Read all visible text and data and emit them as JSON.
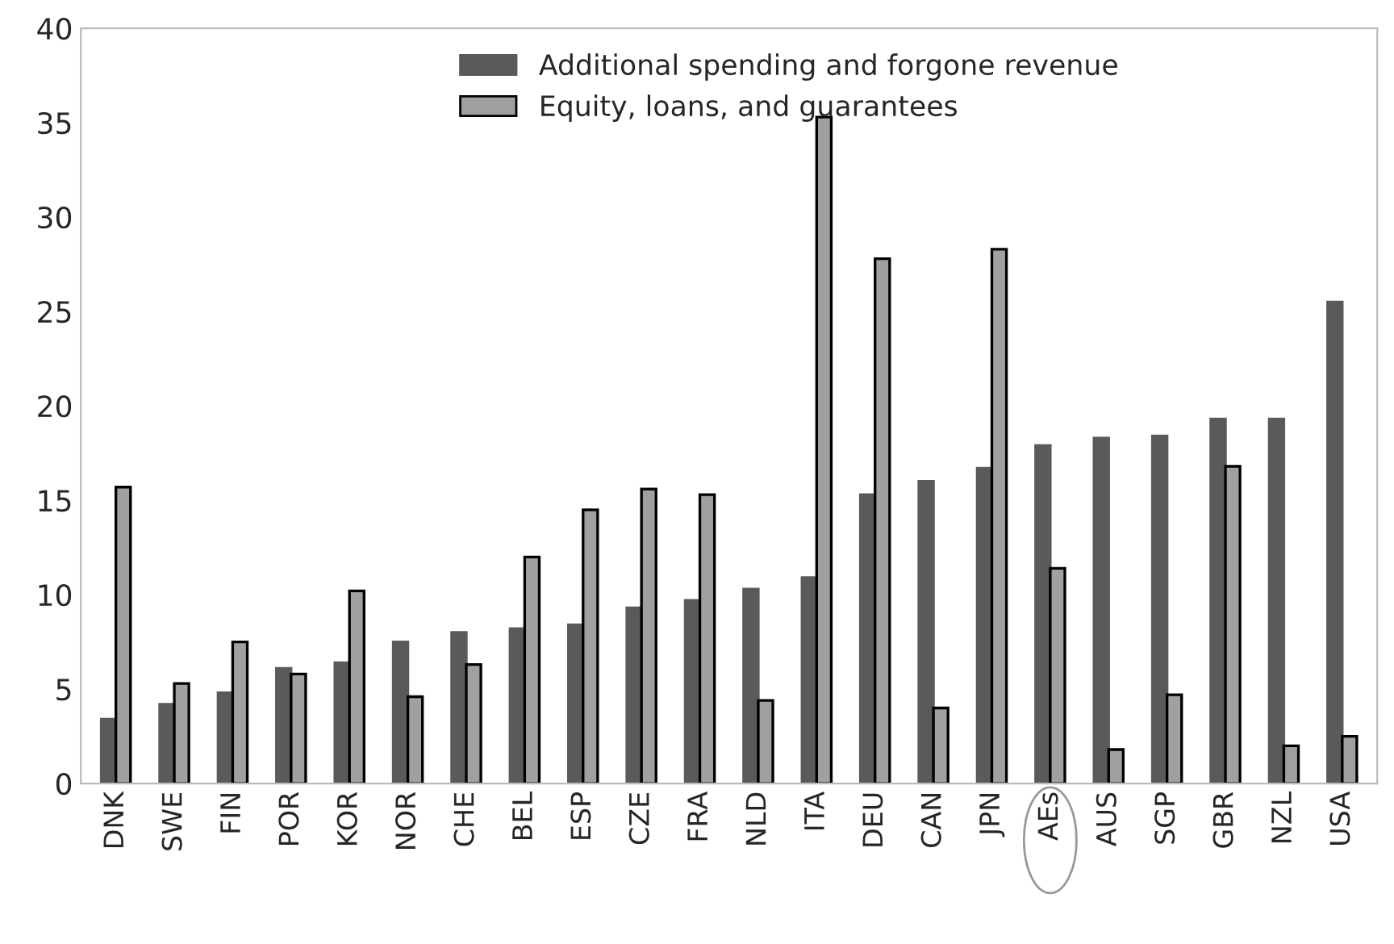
{
  "chart_data": {
    "type": "bar",
    "categories": [
      "DNK",
      "SWE",
      "FIN",
      "POR",
      "KOR",
      "NOR",
      "CHE",
      "BEL",
      "ESP",
      "CZE",
      "FRA",
      "NLD",
      "ITA",
      "DEU",
      "CAN",
      "JPN",
      "AEs",
      "AUS",
      "SGP",
      "GBR",
      "NZL",
      "USA"
    ],
    "series": [
      {
        "name": "Additional spending and forgone revenue",
        "color": "#5a5a5a",
        "values": [
          3.4,
          4.2,
          4.8,
          6.1,
          6.4,
          7.5,
          8.0,
          8.2,
          8.4,
          9.3,
          9.7,
          10.3,
          10.9,
          15.3,
          16.0,
          16.7,
          17.9,
          18.3,
          18.4,
          19.3,
          19.3,
          25.5
        ]
      },
      {
        "name": "Equity, loans, and guarantees",
        "color": "#a0a0a0",
        "values": [
          15.7,
          5.3,
          7.5,
          5.8,
          10.2,
          4.6,
          6.3,
          12.0,
          14.5,
          15.6,
          15.3,
          4.4,
          35.3,
          27.8,
          4.0,
          28.3,
          11.4,
          1.8,
          4.7,
          16.8,
          2.0,
          2.5
        ]
      }
    ],
    "ylim": [
      0,
      40
    ],
    "yticks": [
      0,
      5,
      10,
      15,
      20,
      25,
      30,
      35,
      40
    ],
    "grid": false,
    "legend": "top right"
  }
}
